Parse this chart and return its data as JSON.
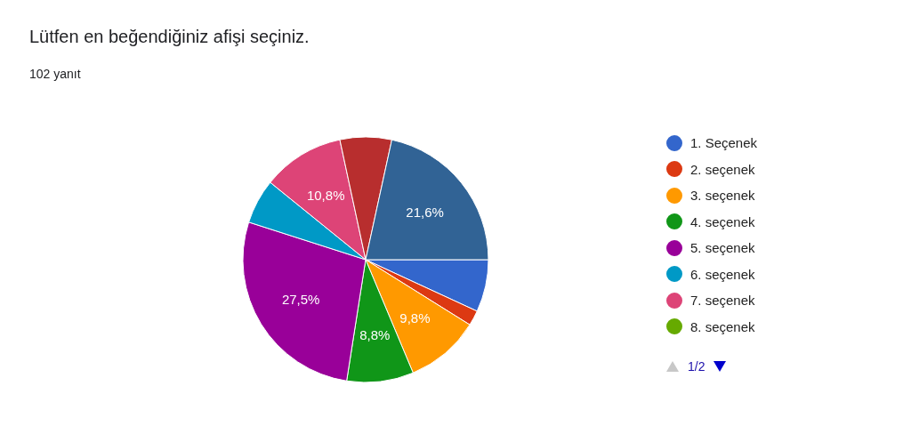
{
  "chart_data": {
    "type": "pie",
    "title": "Lütfen en beğendiğiniz afişi seçiniz.",
    "subtitle": "102 yanıt",
    "categories": [
      "1. Seçenek",
      "2. seçenek",
      "3. seçenek",
      "4. seçenek",
      "5. seçenek",
      "6. seçenek",
      "7. seçenek",
      "8. seçenek",
      null,
      null
    ],
    "values": [
      6.9,
      2,
      9.8,
      8.8,
      27.5,
      5.9,
      10.8,
      0,
      6.8,
      21.6
    ],
    "colors": [
      "#3366cc",
      "#dc3912",
      "#ff9900",
      "#109618",
      "#990099",
      "#0099c6",
      "#dd4477",
      "#66aa00",
      "#b82e2e",
      "#316395"
    ],
    "value_labels": [
      null,
      null,
      "9,8%",
      "8,8%",
      "27,5%",
      null,
      "10,8%",
      null,
      null,
      "21,6%"
    ],
    "legend": "right",
    "annotations": [
      "1/2"
    ]
  }
}
